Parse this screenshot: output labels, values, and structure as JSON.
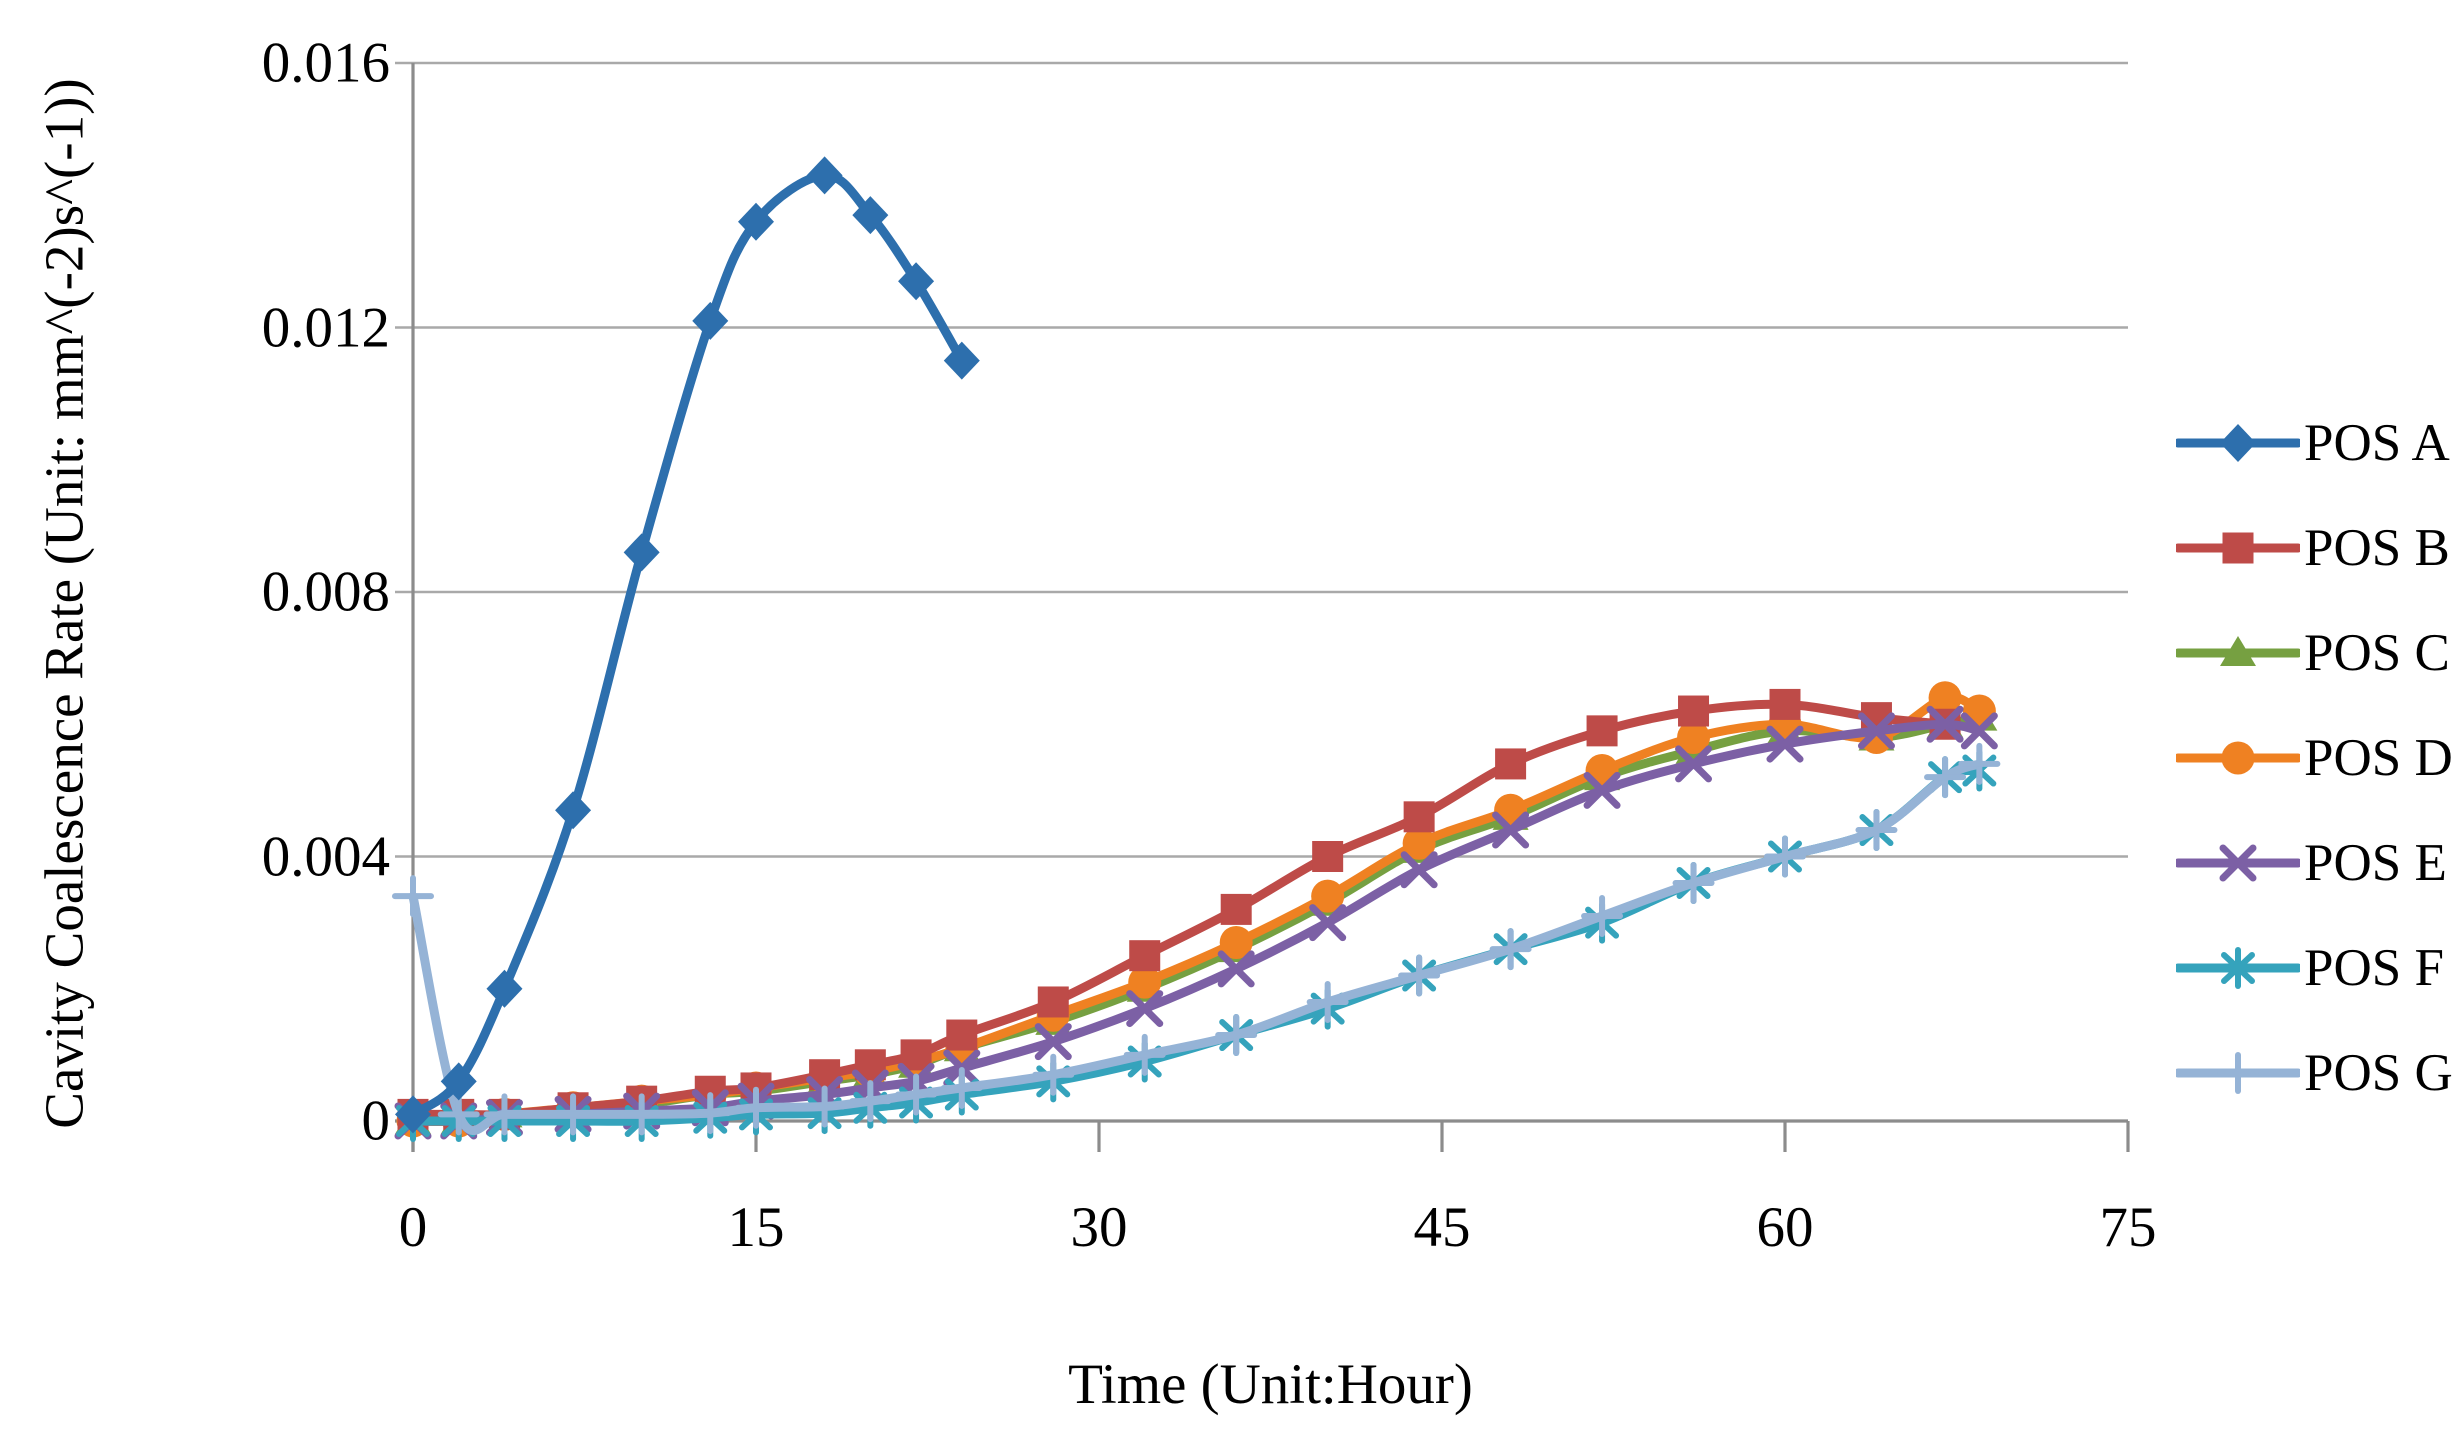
{
  "figure": {
    "x_axis_title": "Time (Unit:Hour)",
    "y_axis_title": "Cavity Coalescence Rate (Unit: mm^(-2)s^(-1))"
  },
  "chart_data": {
    "type": "line",
    "title": "",
    "xlabel": "Time (Unit:Hour)",
    "ylabel": "Cavity Coalescence Rate (Unit: mm^(-2)s^(-1))",
    "xlim": [
      0,
      75
    ],
    "ylim": [
      0,
      0.016
    ],
    "xticks": {
      "values": [
        0,
        15,
        30,
        45,
        60,
        75
      ],
      "labels": [
        "0",
        "15",
        "30",
        "45",
        "60",
        "75"
      ]
    },
    "yticks": {
      "values": [
        0,
        0.004,
        0.008,
        0.012,
        0.016
      ],
      "labels": [
        "0",
        "0.004",
        "0.008",
        "0.012",
        "0.016"
      ]
    },
    "grid": "horizontal",
    "legend_position": "right",
    "axis_color": "#8C8C8C",
    "grid_color": "#A9A9A9",
    "text_color": "#000000",
    "series": [
      {
        "name": "POS A",
        "color": "#2D6FAD",
        "marker": "diamond",
        "x": [
          0,
          2,
          4,
          7,
          10,
          13,
          15,
          18,
          20,
          22,
          24
        ],
        "y": [
          0.0001,
          0.0006,
          0.002,
          0.0047,
          0.0086,
          0.0121,
          0.0136,
          0.0143,
          0.0137,
          0.0127,
          0.0115
        ]
      },
      {
        "name": "POS B",
        "color": "#BE4B48",
        "marker": "square",
        "x": [
          0,
          2,
          4,
          7,
          10,
          13,
          15,
          18,
          20,
          22,
          24,
          28,
          32,
          36,
          40,
          44,
          48,
          52,
          56,
          60,
          64,
          67
        ],
        "y": [
          0.0001,
          0.0001,
          0.0001,
          0.0002,
          0.0003,
          0.00045,
          0.0005,
          0.0007,
          0.00085,
          0.001,
          0.0013,
          0.0018,
          0.0025,
          0.0032,
          0.004,
          0.0046,
          0.0054,
          0.0059,
          0.0062,
          0.0063,
          0.0061,
          0.006
        ]
      },
      {
        "name": "POS C",
        "color": "#76A041",
        "marker": "triangle",
        "x": [
          0,
          2,
          4,
          7,
          10,
          13,
          15,
          18,
          20,
          22,
          24,
          28,
          32,
          36,
          40,
          44,
          48,
          52,
          56,
          60,
          64,
          67,
          68.5
        ],
        "y": [
          0,
          0,
          0.0001,
          0.00015,
          0.00025,
          0.0004,
          0.00045,
          0.0006,
          0.0007,
          0.00085,
          0.0011,
          0.0015,
          0.002,
          0.0026,
          0.0033,
          0.0041,
          0.0046,
          0.0052,
          0.0056,
          0.0059,
          0.0058,
          0.006,
          0.0061
        ]
      },
      {
        "name": "POS D",
        "color": "#EF8122",
        "marker": "circle",
        "x": [
          0,
          2,
          4,
          7,
          10,
          13,
          15,
          18,
          20,
          22,
          24,
          28,
          32,
          36,
          40,
          44,
          48,
          52,
          56,
          60,
          64,
          67,
          68.5
        ],
        "y": [
          0,
          0,
          0.0001,
          0.0002,
          0.0003,
          0.0004,
          0.0005,
          0.00065,
          0.00075,
          0.0009,
          0.0011,
          0.0016,
          0.0021,
          0.0027,
          0.0034,
          0.0042,
          0.0047,
          0.0053,
          0.0058,
          0.006,
          0.0058,
          0.0064,
          0.0062
        ]
      },
      {
        "name": "POS E",
        "color": "#7C60A5",
        "marker": "x",
        "x": [
          0,
          2,
          4,
          7,
          10,
          13,
          15,
          18,
          20,
          22,
          24,
          28,
          32,
          36,
          40,
          44,
          48,
          52,
          56,
          60,
          64,
          67,
          68.5
        ],
        "y": [
          0,
          0,
          5e-05,
          0.0001,
          0.00015,
          0.0002,
          0.0003,
          0.0004,
          0.0005,
          0.0006,
          0.0008,
          0.0012,
          0.0017,
          0.0023,
          0.003,
          0.0038,
          0.0044,
          0.005,
          0.0054,
          0.0057,
          0.0059,
          0.006,
          0.0059
        ]
      },
      {
        "name": "POS F",
        "color": "#35A3BC",
        "marker": "asterisk",
        "x": [
          0,
          2,
          4,
          7,
          10,
          13,
          15,
          18,
          20,
          22,
          24,
          28,
          32,
          36,
          40,
          44,
          48,
          52,
          56,
          60,
          64,
          67,
          68.5
        ],
        "y": [
          0,
          0,
          0,
          0,
          0,
          5e-05,
          0.0001,
          0.00012,
          0.0002,
          0.00028,
          0.0004,
          0.0006,
          0.0009,
          0.0013,
          0.0017,
          0.0022,
          0.0026,
          0.003,
          0.0036,
          0.004,
          0.0044,
          0.0052,
          0.0053
        ]
      },
      {
        "name": "POS G",
        "color": "#95B3D6",
        "marker": "plus",
        "x": [
          0,
          2,
          4,
          7,
          10,
          13,
          15,
          18,
          20,
          22,
          24,
          28,
          32,
          36,
          40,
          44,
          48,
          52,
          56,
          60,
          64,
          67,
          68.5
        ],
        "y": [
          0.0034,
          0.0001,
          0.0001,
          0.0001,
          0.0001,
          0.00012,
          0.0002,
          0.00022,
          0.0003,
          0.0004,
          0.0005,
          0.0007,
          0.001,
          0.0013,
          0.0018,
          0.0022,
          0.0026,
          0.0031,
          0.0036,
          0.004,
          0.0044,
          0.0052,
          0.0054
        ]
      }
    ]
  }
}
